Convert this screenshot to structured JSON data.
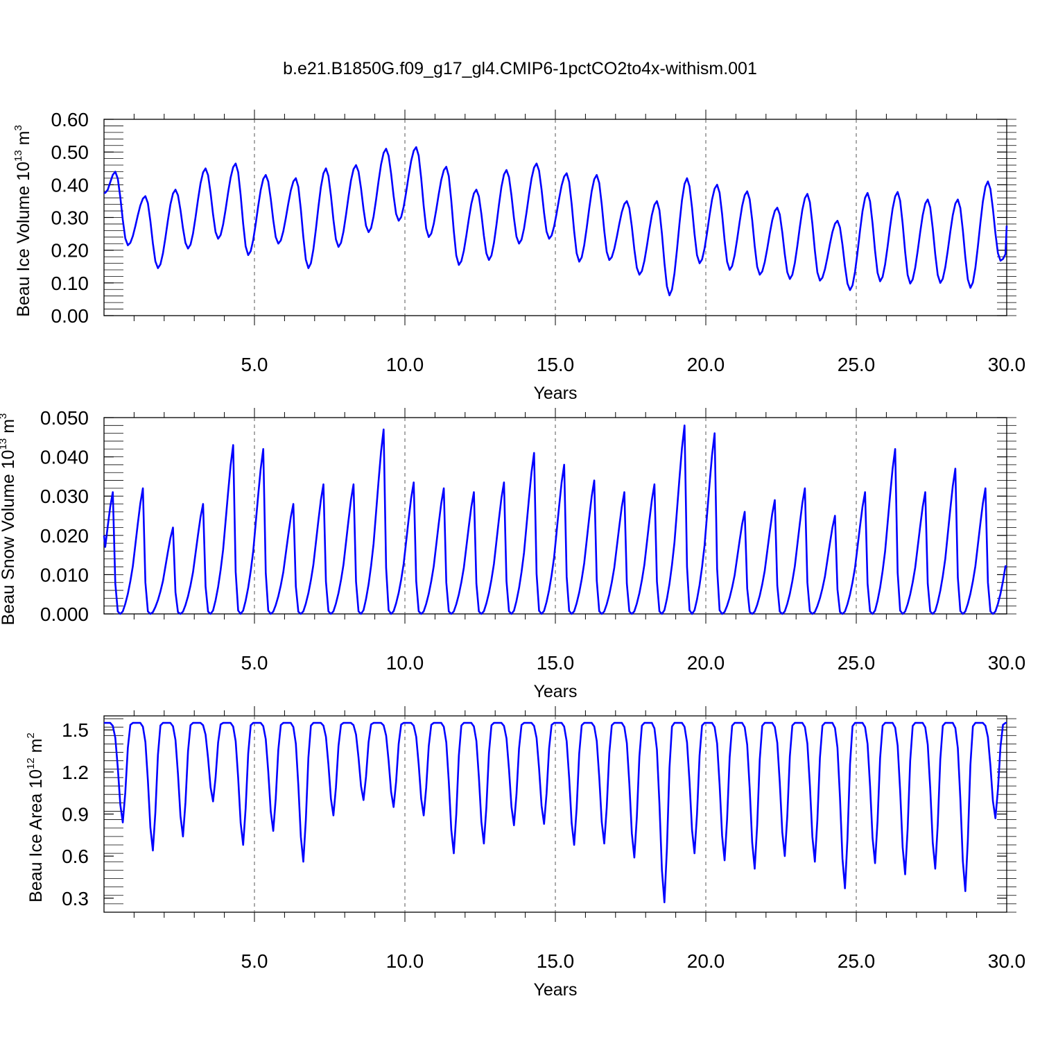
{
  "figure": {
    "title": "b.e21.B1850G.f09_g17_gl4.CMIP6-1pctCO2to4x-withism.001"
  },
  "style": {
    "line_color": "#0000ff",
    "axis_color": "#000000",
    "grid_color": "#555555"
  },
  "chart_data": [
    {
      "type": "line",
      "ylabel": "Beau Ice Volume 10",
      "ylabel_exp": "13",
      "ylabel_unit": " m",
      "ylabel_unit_exp": "3",
      "xlabel": "Years",
      "xlim": [
        0.0,
        30.0
      ],
      "ylim": [
        0.0,
        0.6
      ],
      "yticks": [
        0.0,
        0.1,
        0.2,
        0.3,
        0.4,
        0.5,
        0.6
      ],
      "ytick_labels": [
        "0.00",
        "0.10",
        "0.20",
        "0.30",
        "0.40",
        "0.50",
        "0.60"
      ],
      "xticks": [
        5,
        10,
        15,
        20,
        25,
        30
      ],
      "xtick_labels": [
        "5.0",
        "10.0",
        "15.0",
        "20.0",
        "25.0",
        "30.0"
      ],
      "grid": "dashed vertical at x ticks",
      "series": [
        {
          "min_month": 8,
          "annual": [
            [
              0.44,
              0.215
            ],
            [
              0.365,
              0.145
            ],
            [
              0.385,
              0.205
            ],
            [
              0.45,
              0.235
            ],
            [
              0.465,
              0.185
            ],
            [
              0.43,
              0.22
            ],
            [
              0.42,
              0.145
            ],
            [
              0.45,
              0.21
            ],
            [
              0.46,
              0.255
            ],
            [
              0.51,
              0.29
            ],
            [
              0.515,
              0.24
            ],
            [
              0.455,
              0.155
            ],
            [
              0.385,
              0.17
            ],
            [
              0.445,
              0.22
            ],
            [
              0.465,
              0.235
            ],
            [
              0.435,
              0.165
            ],
            [
              0.43,
              0.17
            ],
            [
              0.35,
              0.125
            ],
            [
              0.35,
              0.062
            ],
            [
              0.42,
              0.16
            ],
            [
              0.4,
              0.14
            ],
            [
              0.38,
              0.125
            ],
            [
              0.33,
              0.112
            ],
            [
              0.372,
              0.107
            ],
            [
              0.29,
              0.078
            ],
            [
              0.375,
              0.105
            ],
            [
              0.378,
              0.098
            ],
            [
              0.355,
              0.1
            ],
            [
              0.355,
              0.085
            ],
            [
              0.41,
              0.168
            ]
          ],
          "start": 0.375,
          "end": 0.275
        }
      ]
    },
    {
      "type": "line",
      "ylabel": "Beau Snow Volume 10",
      "ylabel_exp": "13",
      "ylabel_unit": " m",
      "ylabel_unit_exp": "3",
      "xlabel": "Years",
      "xlim": [
        0.0,
        30.0
      ],
      "ylim": [
        0.0,
        0.05
      ],
      "yticks": [
        0.0,
        0.01,
        0.02,
        0.03,
        0.04,
        0.05
      ],
      "ytick_labels": [
        "0.000",
        "0.010",
        "0.020",
        "0.030",
        "0.040",
        "0.050"
      ],
      "xticks": [
        5,
        10,
        15,
        20,
        25,
        30
      ],
      "xtick_labels": [
        "5.0",
        "10.0",
        "15.0",
        "20.0",
        "25.0",
        "30.0"
      ],
      "grid": "dashed vertical at x ticks",
      "series": [
        {
          "shape": "snow",
          "annual_peak": [
            0.031,
            0.032,
            0.022,
            0.028,
            0.043,
            0.042,
            0.028,
            0.033,
            0.033,
            0.047,
            0.0335,
            0.032,
            0.031,
            0.0335,
            0.041,
            0.038,
            0.034,
            0.031,
            0.033,
            0.048,
            0.046,
            0.026,
            0.029,
            0.032,
            0.025,
            0.031,
            0.042,
            0.031,
            0.037,
            0.032
          ],
          "start": 0.02,
          "end": 0.012
        }
      ]
    },
    {
      "type": "line",
      "ylabel": "Beau Ice Area 10",
      "ylabel_exp": "12",
      "ylabel_unit": " m",
      "ylabel_unit_exp": "2",
      "xlabel": "Years",
      "xlim": [
        0.0,
        30.0
      ],
      "ylim": [
        0.2,
        1.6
      ],
      "yticks": [
        0.3,
        0.6,
        0.9,
        1.2,
        1.5
      ],
      "ytick_labels": [
        "0.3",
        "0.6",
        "0.9",
        "1.2",
        "1.5"
      ],
      "xticks": [
        5,
        10,
        15,
        20,
        25,
        30
      ],
      "xtick_labels": [
        "5.0",
        "10.0",
        "15.0",
        "20.0",
        "25.0",
        "30.0"
      ],
      "grid": "dashed vertical at x ticks",
      "series": [
        {
          "shape": "area",
          "max": 1.55,
          "annual_min": [
            0.84,
            0.64,
            0.74,
            0.99,
            0.68,
            0.78,
            0.56,
            0.89,
            1.0,
            0.95,
            0.89,
            0.62,
            0.69,
            0.82,
            0.83,
            0.68,
            0.69,
            0.59,
            0.27,
            0.62,
            0.57,
            0.51,
            0.6,
            0.56,
            0.37,
            0.55,
            0.47,
            0.51,
            0.35,
            0.87
          ],
          "start": 1.55,
          "end": 1.55
        }
      ]
    }
  ]
}
